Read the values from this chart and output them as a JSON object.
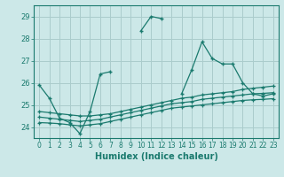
{
  "title": "",
  "xlabel": "Humidex (Indice chaleur)",
  "xlim": [
    -0.5,
    23.5
  ],
  "ylim": [
    23.5,
    29.5
  ],
  "yticks": [
    24,
    25,
    26,
    27,
    28,
    29
  ],
  "xticks": [
    0,
    1,
    2,
    3,
    4,
    5,
    6,
    7,
    8,
    9,
    10,
    11,
    12,
    13,
    14,
    15,
    16,
    17,
    18,
    19,
    20,
    21,
    22,
    23
  ],
  "bg_color": "#cce8e8",
  "grid_color": "#aacccc",
  "line_color": "#1a7a6e",
  "series1_x": [
    0,
    1,
    2,
    3,
    4,
    5,
    6,
    7,
    8,
    9,
    10,
    11,
    12,
    13,
    14,
    15,
    16,
    17,
    18,
    19,
    20,
    21,
    22,
    23
  ],
  "series1_y": [
    25.9,
    25.3,
    24.4,
    24.2,
    23.7,
    24.7,
    26.4,
    26.5,
    null,
    null,
    28.35,
    29.0,
    28.9,
    null,
    25.5,
    26.6,
    27.85,
    27.1,
    26.85,
    26.85,
    26.0,
    25.5,
    25.4,
    25.5
  ],
  "series2_x": [
    0,
    1,
    2,
    3,
    4,
    5,
    6,
    7,
    8,
    9,
    10,
    11,
    12,
    13,
    14,
    15,
    16,
    17,
    18,
    19,
    20,
    21,
    22,
    23
  ],
  "series2_y": [
    24.7,
    24.65,
    24.6,
    24.55,
    24.5,
    24.5,
    24.55,
    24.6,
    24.7,
    24.8,
    24.9,
    25.0,
    25.1,
    25.2,
    25.3,
    25.35,
    25.45,
    25.5,
    25.55,
    25.6,
    25.7,
    25.75,
    25.8,
    25.85
  ],
  "series3_x": [
    0,
    1,
    2,
    3,
    4,
    5,
    6,
    7,
    8,
    9,
    10,
    11,
    12,
    13,
    14,
    15,
    16,
    17,
    18,
    19,
    20,
    21,
    22,
    23
  ],
  "series3_y": [
    24.45,
    24.4,
    24.35,
    24.3,
    24.25,
    24.3,
    24.35,
    24.45,
    24.55,
    24.65,
    24.75,
    24.85,
    24.95,
    25.05,
    25.1,
    25.15,
    25.25,
    25.3,
    25.35,
    25.4,
    25.45,
    25.5,
    25.52,
    25.55
  ],
  "series4_x": [
    0,
    1,
    2,
    3,
    4,
    5,
    6,
    7,
    8,
    9,
    10,
    11,
    12,
    13,
    14,
    15,
    16,
    17,
    18,
    19,
    20,
    21,
    22,
    23
  ],
  "series4_y": [
    24.2,
    24.18,
    24.15,
    24.1,
    24.05,
    24.1,
    24.15,
    24.25,
    24.35,
    24.45,
    24.55,
    24.65,
    24.75,
    24.85,
    24.9,
    24.95,
    25.0,
    25.05,
    25.1,
    25.15,
    25.2,
    25.23,
    25.25,
    25.28
  ]
}
